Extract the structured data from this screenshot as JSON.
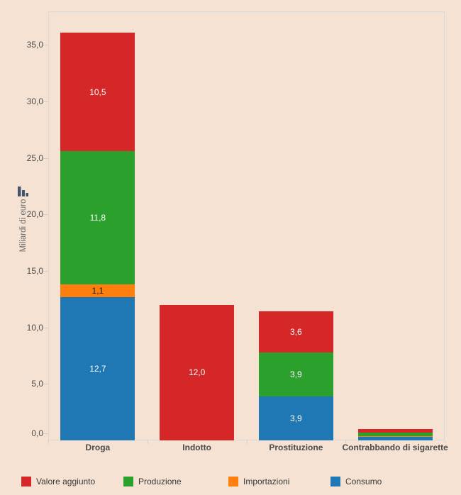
{
  "chart_data": {
    "type": "bar",
    "stacked": true,
    "title": "",
    "ylabel": "Miliardi di euro",
    "xlabel": "",
    "categories": [
      "Droga",
      "Indotto",
      "Prostituzione",
      "Contrabbando di sigarette"
    ],
    "series": [
      {
        "name": "Consumo",
        "color": "#1f77b4",
        "label_color": "#ffffff",
        "values": [
          12.7,
          0,
          3.9,
          0.3
        ]
      },
      {
        "name": "Importazioni",
        "color": "#ff7f0e",
        "label_color": "#1a1a1a",
        "values": [
          1.1,
          0,
          0,
          0.1
        ]
      },
      {
        "name": "Produzione",
        "color": "#2ca02c",
        "label_color": "#ffffff",
        "values": [
          11.8,
          0,
          3.9,
          0.3
        ]
      },
      {
        "name": "Valore aggiunto",
        "color": "#d62728",
        "label_color": "#ffffff",
        "values": [
          10.5,
          12.0,
          3.6,
          0.3
        ]
      }
    ],
    "totals": [
      36.1,
      12.0,
      11.4,
      1.0
    ],
    "yticks": [
      0,
      5,
      10,
      15,
      20,
      25,
      30,
      35
    ],
    "ytick_labels": [
      "0,0",
      "5,0",
      "10,0",
      "15,0",
      "20,0",
      "25,0",
      "30,0",
      "35,0"
    ],
    "ylim": [
      0,
      36.5
    ],
    "grid": false,
    "decimal_separator": ",",
    "value_label_min": 1.0,
    "legend_position": "bottom",
    "legend_order": [
      "Valore aggiunto",
      "Produzione",
      "Importazioni",
      "Consumo"
    ]
  },
  "style": {
    "background": "#f5e2d2",
    "plot_border": "#d9d9d9",
    "axis_text": "#4d4d4d",
    "ylabel_text": "#6b6b6b",
    "tick_mark": "#e2cbba",
    "legend_text": "#383838",
    "icon_color": "#45536b"
  },
  "icons": {
    "mini_chart_icon": "bar-chart-glyph"
  }
}
